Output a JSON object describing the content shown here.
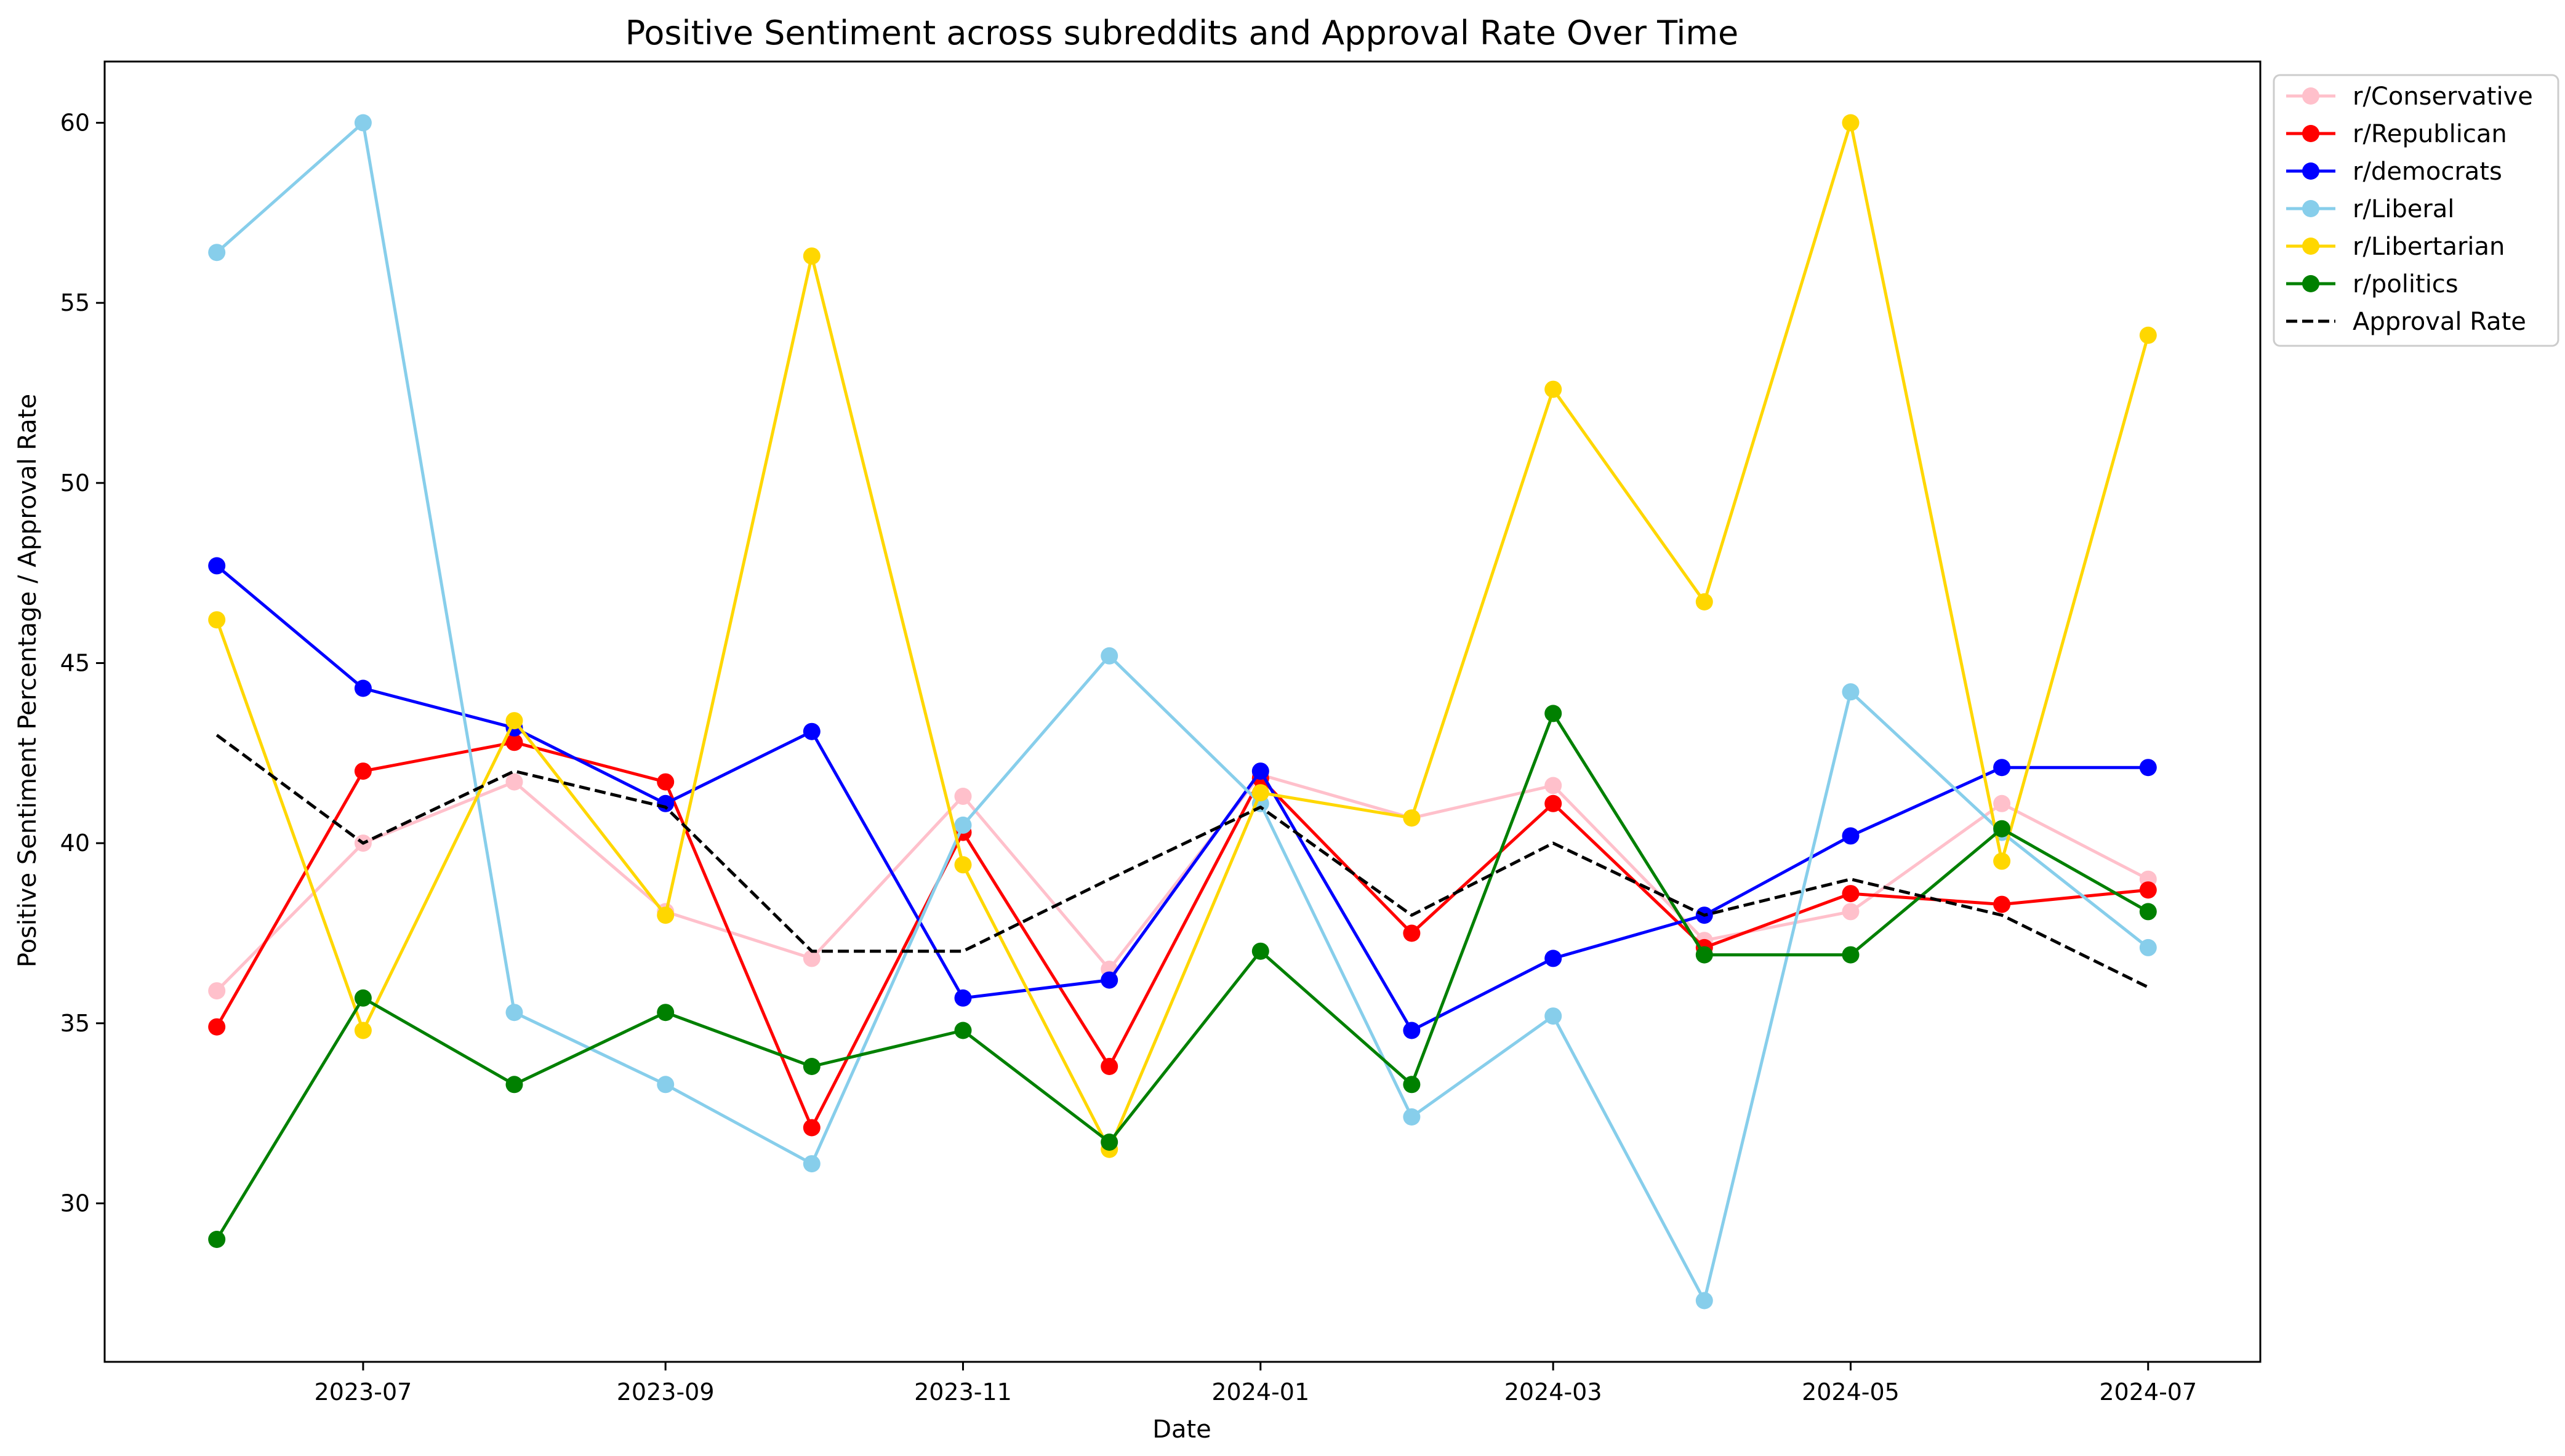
{
  "chart_data": {
    "type": "line",
    "title": "Positive Sentiment across subreddits and Approval Rate Over Time",
    "xlabel": "Date",
    "ylabel": "Positive Sentiment Percentage / Approval Rate",
    "x": [
      "2023-06-01",
      "2023-07-01",
      "2023-08-01",
      "2023-09-01",
      "2023-10-01",
      "2023-11-01",
      "2023-12-01",
      "2024-01-01",
      "2024-02-01",
      "2024-03-01",
      "2024-04-01",
      "2024-05-01",
      "2024-06-01",
      "2024-07-01"
    ],
    "x_ticks": [
      "2023-07-01",
      "2023-09-01",
      "2023-11-01",
      "2024-01-01",
      "2024-03-01",
      "2024-05-01",
      "2024-07-01"
    ],
    "x_tick_labels": [
      "2023-07",
      "2023-09",
      "2023-11",
      "2024-01",
      "2024-03",
      "2024-05",
      "2024-07"
    ],
    "xlim": [
      "2023-05-09",
      "2024-07-24"
    ],
    "y_ticks": [
      30,
      35,
      40,
      45,
      50,
      55,
      60
    ],
    "ylim": [
      25.6,
      61.7
    ],
    "grid": false,
    "legend_position": "outside top-right",
    "series": [
      {
        "name": "r/Conservative",
        "color": "#ffc0cb",
        "style": "solid",
        "marker": true,
        "values": [
          35.9,
          40.0,
          41.7,
          38.1,
          36.8,
          41.3,
          36.5,
          41.9,
          40.7,
          41.6,
          37.3,
          38.1,
          41.1,
          39.0
        ]
      },
      {
        "name": "r/Republican",
        "color": "#ff0000",
        "style": "solid",
        "marker": true,
        "values": [
          34.9,
          42.0,
          42.8,
          41.7,
          32.1,
          40.3,
          33.8,
          41.8,
          37.5,
          41.1,
          37.1,
          38.6,
          38.3,
          38.7
        ]
      },
      {
        "name": "r/democrats",
        "color": "#0000ff",
        "style": "solid",
        "marker": true,
        "values": [
          47.7,
          44.3,
          43.2,
          41.1,
          43.1,
          35.7,
          36.2,
          42.0,
          34.8,
          36.8,
          38.0,
          40.2,
          42.1,
          42.1
        ]
      },
      {
        "name": "r/Liberal",
        "color": "#87ceeb",
        "style": "solid",
        "marker": true,
        "values": [
          56.4,
          60.0,
          35.3,
          33.3,
          31.1,
          40.5,
          45.2,
          41.1,
          32.4,
          35.2,
          27.3,
          44.2,
          40.3,
          37.1
        ]
      },
      {
        "name": "r/Libertarian",
        "color": "#ffd700",
        "style": "solid",
        "marker": true,
        "values": [
          46.2,
          34.8,
          43.4,
          38.0,
          56.3,
          39.4,
          31.5,
          41.4,
          40.7,
          52.6,
          46.7,
          60.0,
          39.5,
          54.1
        ]
      },
      {
        "name": "r/politics",
        "color": "#008000",
        "style": "solid",
        "marker": true,
        "values": [
          29.0,
          35.7,
          33.3,
          35.3,
          33.8,
          34.8,
          31.7,
          37.0,
          33.3,
          43.6,
          36.9,
          36.9,
          40.4,
          38.1
        ]
      },
      {
        "name": "Approval Rate",
        "color": "#000000",
        "style": "dashed",
        "marker": false,
        "values": [
          43.0,
          40.0,
          42.0,
          41.0,
          37.0,
          37.0,
          39.0,
          41.0,
          38.0,
          40.0,
          38.0,
          39.0,
          38.0,
          36.0
        ]
      }
    ]
  }
}
